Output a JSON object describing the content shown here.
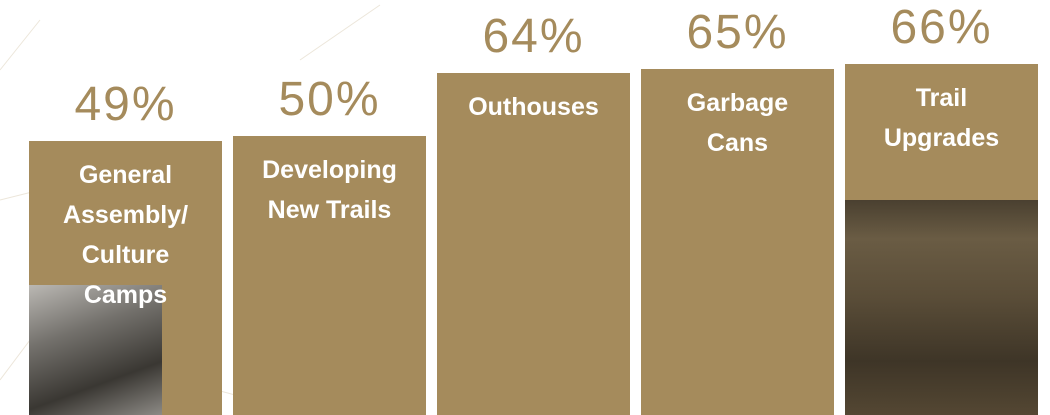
{
  "chart_data": {
    "type": "bar",
    "categories": [
      "General Assembly/ Culture Camps",
      "Developing New Trails",
      "Outhouses",
      "Garbage Cans",
      "Trail Upgrades"
    ],
    "values": [
      49,
      50,
      64,
      65,
      66
    ],
    "value_labels": [
      "49%",
      "50%",
      "64%",
      "65%",
      "66%"
    ],
    "color": "#a58b5c"
  }
}
